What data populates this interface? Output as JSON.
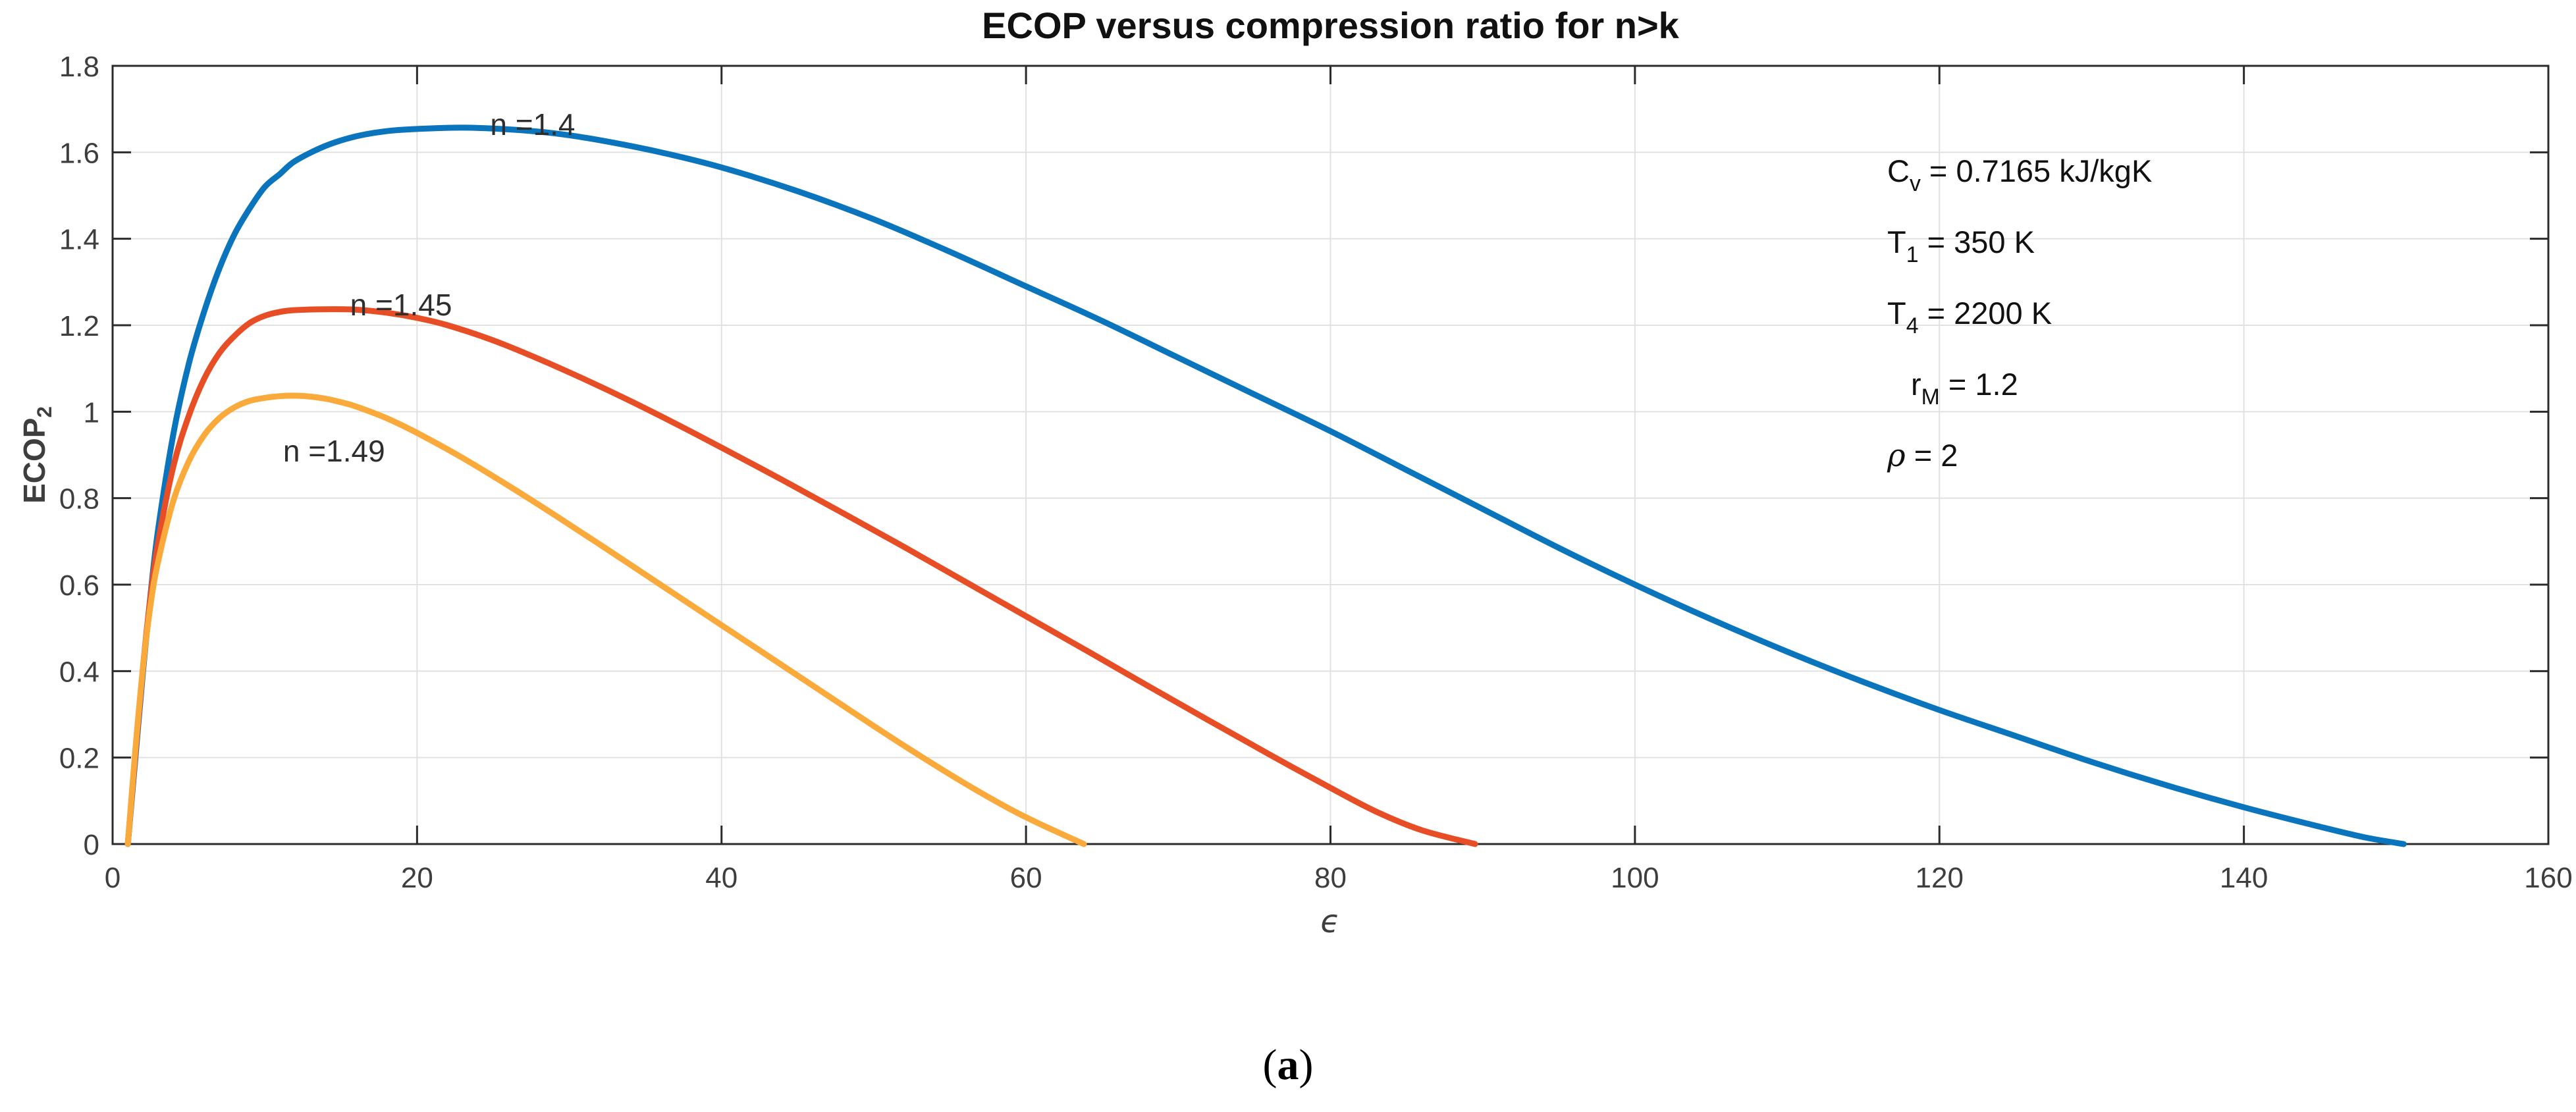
{
  "title": "ECOP versus compression ratio for n>k",
  "caption": {
    "open": "(",
    "letter": "a",
    "close": ")"
  },
  "axes": {
    "xlabel": "ϵ",
    "ylabel_main": "ECOP",
    "ylabel_sub": "2",
    "x_tick_labels": [
      "0",
      "20",
      "40",
      "60",
      "80",
      "100",
      "120",
      "140",
      "160"
    ],
    "x_tick_values": [
      0,
      20,
      40,
      60,
      80,
      100,
      120,
      140,
      160
    ],
    "y_tick_labels": [
      "0",
      "0.2",
      "0.4",
      "0.6",
      "0.8",
      "1",
      "1.2",
      "1.4",
      "1.6",
      "1.8"
    ],
    "y_tick_values": [
      0,
      0.2,
      0.4,
      0.6,
      0.8,
      1,
      1.2,
      1.4,
      1.6,
      1.8
    ]
  },
  "annotation": {
    "lines": [
      {
        "pre": "C",
        "italic": false,
        "sub": "v",
        "post": " = 0.7165 kJ/kgK"
      },
      {
        "pre": "T",
        "italic": false,
        "sub": "1",
        "post": " = 350 K"
      },
      {
        "pre": "T",
        "italic": false,
        "sub": "4",
        "post": " = 2200 K"
      },
      {
        "pre": "r",
        "italic": false,
        "sub": "M",
        "post": " = 1.2"
      },
      {
        "pre": "ρ",
        "italic": true,
        "sub": "",
        "post": " = 2"
      }
    ]
  },
  "colors": {
    "blue": "#0A74BD",
    "red": "#E84E26",
    "yellow": "#FAA93B",
    "grid": "#E1E1E1",
    "axis": "#2B2B2B",
    "tick_label": "#3E3E3E"
  },
  "chart_data": {
    "type": "line",
    "title": "ECOP versus compression ratio for n>k",
    "xlabel": "epsilon (compression ratio)",
    "ylabel": "ECOP_2",
    "xlim": [
      0,
      160
    ],
    "ylim": [
      0,
      1.8
    ],
    "grid": true,
    "legend_position": "inline-curve-labels",
    "series": [
      {
        "name": "n =1.4",
        "n_value": 1.4,
        "color": "#0A74BD",
        "peak": {
          "x": 23,
          "y": 1.66
        },
        "zero_crossing": 150.5,
        "label_pos": {
          "x": 24.8,
          "y": 1.705
        },
        "points": [
          [
            1,
            0
          ],
          [
            1.5,
            0.2
          ],
          [
            2,
            0.4
          ],
          [
            2.5,
            0.58
          ],
          [
            3,
            0.73
          ],
          [
            4,
            0.95
          ],
          [
            5,
            1.11
          ],
          [
            6,
            1.23
          ],
          [
            7,
            1.33
          ],
          [
            8,
            1.41
          ],
          [
            9,
            1.47
          ],
          [
            10,
            1.52
          ],
          [
            11,
            1.55
          ],
          [
            12,
            1.58
          ],
          [
            14,
            1.615
          ],
          [
            16,
            1.637
          ],
          [
            18,
            1.649
          ],
          [
            20,
            1.654
          ],
          [
            23,
            1.657
          ],
          [
            26,
            1.653
          ],
          [
            29,
            1.644
          ],
          [
            32,
            1.628
          ],
          [
            36,
            1.6
          ],
          [
            40,
            1.565
          ],
          [
            45,
            1.51
          ],
          [
            50,
            1.445
          ],
          [
            55,
            1.37
          ],
          [
            60,
            1.29
          ],
          [
            65,
            1.21
          ],
          [
            70,
            1.125
          ],
          [
            75,
            1.04
          ],
          [
            80,
            0.955
          ],
          [
            85,
            0.865
          ],
          [
            90,
            0.775
          ],
          [
            95,
            0.685
          ],
          [
            100,
            0.6
          ],
          [
            105,
            0.52
          ],
          [
            110,
            0.445
          ],
          [
            115,
            0.375
          ],
          [
            120,
            0.31
          ],
          [
            125,
            0.25
          ],
          [
            130,
            0.19
          ],
          [
            135,
            0.135
          ],
          [
            140,
            0.085
          ],
          [
            145,
            0.04
          ],
          [
            148,
            0.015
          ],
          [
            150.5,
            0
          ]
        ]
      },
      {
        "name": "n =1.45",
        "n_value": 1.45,
        "color": "#E84E26",
        "peak": {
          "x": 15,
          "y": 1.237
        },
        "zero_crossing": 89.5,
        "label_pos": {
          "x": 15.6,
          "y": 1.288
        },
        "points": [
          [
            1,
            0
          ],
          [
            1.5,
            0.21
          ],
          [
            2,
            0.41
          ],
          [
            2.5,
            0.575
          ],
          [
            3,
            0.7
          ],
          [
            4,
            0.875
          ],
          [
            5,
            0.99
          ],
          [
            6,
            1.075
          ],
          [
            7,
            1.135
          ],
          [
            8,
            1.175
          ],
          [
            9,
            1.205
          ],
          [
            10,
            1.222
          ],
          [
            11,
            1.231
          ],
          [
            12,
            1.235
          ],
          [
            14,
            1.237
          ],
          [
            16,
            1.236
          ],
          [
            18,
            1.229
          ],
          [
            20,
            1.217
          ],
          [
            22,
            1.2
          ],
          [
            25,
            1.165
          ],
          [
            28,
            1.122
          ],
          [
            31,
            1.075
          ],
          [
            34,
            1.025
          ],
          [
            37,
            0.972
          ],
          [
            40,
            0.917
          ],
          [
            44,
            0.842
          ],
          [
            48,
            0.765
          ],
          [
            52,
            0.687
          ],
          [
            56,
            0.607
          ],
          [
            60,
            0.527
          ],
          [
            64,
            0.447
          ],
          [
            68,
            0.366
          ],
          [
            72,
            0.286
          ],
          [
            76,
            0.207
          ],
          [
            80,
            0.13
          ],
          [
            83,
            0.075
          ],
          [
            86,
            0.032
          ],
          [
            89.5,
            0
          ]
        ]
      },
      {
        "name": "n =1.49",
        "n_value": 1.49,
        "color": "#FAA93B",
        "peak": {
          "x": 12,
          "y": 1.037
        },
        "zero_crossing": 63.8,
        "label_pos": {
          "x": 11.2,
          "y": 0.95
        },
        "points": [
          [
            1,
            0
          ],
          [
            1.5,
            0.22
          ],
          [
            2,
            0.41
          ],
          [
            2.5,
            0.555
          ],
          [
            3,
            0.655
          ],
          [
            4,
            0.795
          ],
          [
            5,
            0.885
          ],
          [
            6,
            0.945
          ],
          [
            7,
            0.985
          ],
          [
            8,
            1.01
          ],
          [
            9,
            1.025
          ],
          [
            10,
            1.032
          ],
          [
            11,
            1.036
          ],
          [
            12,
            1.037
          ],
          [
            13,
            1.035
          ],
          [
            14,
            1.03
          ],
          [
            15,
            1.022
          ],
          [
            16,
            1.012
          ],
          [
            18,
            0.985
          ],
          [
            20,
            0.951
          ],
          [
            23,
            0.893
          ],
          [
            26,
            0.829
          ],
          [
            29,
            0.762
          ],
          [
            32,
            0.693
          ],
          [
            35,
            0.623
          ],
          [
            38,
            0.553
          ],
          [
            41,
            0.483
          ],
          [
            44,
            0.413
          ],
          [
            47,
            0.343
          ],
          [
            50,
            0.273
          ],
          [
            53,
            0.205
          ],
          [
            56,
            0.14
          ],
          [
            59,
            0.08
          ],
          [
            61,
            0.045
          ],
          [
            63.8,
            0
          ]
        ]
      }
    ],
    "annotation_text": [
      "C_v = 0.7165 kJ/kgK",
      "T_1 = 350 K",
      "T_4 = 2200 K",
      "r_M = 1.2",
      "rho = 2"
    ]
  }
}
